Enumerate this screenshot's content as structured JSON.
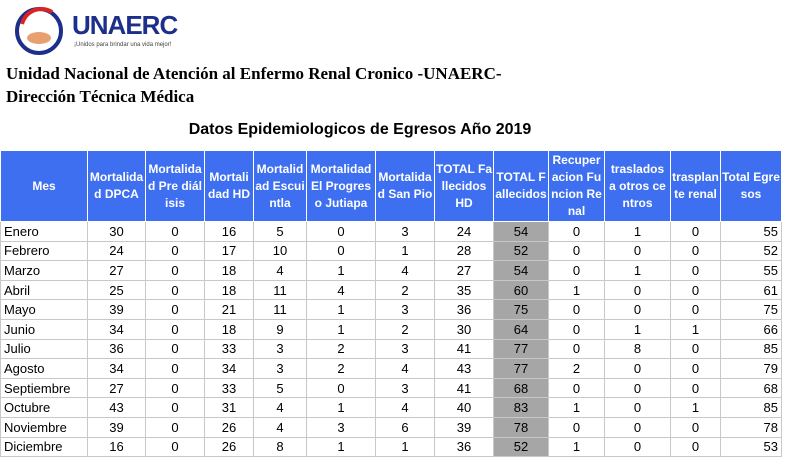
{
  "header": {
    "logo": "UNAERC",
    "tagline": "¡Unidos para brindar una vida mejor!",
    "title": "Unidad Nacional de Atención al Enfermo Renal Cronico -UNAERC-",
    "subtitle": "Dirección Técnica Médica"
  },
  "table": {
    "title": "Datos Epidemiologicos de Egresos Año 2019",
    "columns": [
      "Mes",
      "Mortalidad DPCA",
      "Mortalidad Pre diálisis",
      "Mortalidad HD",
      "Mortalidad Escuintla",
      "Mortalidad El Progreso Jutiapa",
      "Mortalidad San Pio",
      "TOTAL Fallecidos HD",
      "TOTAL Fallecidos",
      "Recuperacion Funcion Renal",
      "traslados a otros centros",
      "trasplante renal",
      "Total Egresos"
    ],
    "rows": [
      [
        "Enero",
        30,
        0,
        16,
        5,
        0,
        3,
        24,
        54,
        0,
        1,
        0,
        55
      ],
      [
        "Febrero",
        24,
        0,
        17,
        10,
        0,
        1,
        28,
        52,
        0,
        0,
        0,
        52
      ],
      [
        "Marzo",
        27,
        0,
        18,
        4,
        1,
        4,
        27,
        54,
        0,
        1,
        0,
        55
      ],
      [
        "Abril",
        25,
        0,
        18,
        11,
        4,
        2,
        35,
        60,
        1,
        0,
        0,
        61
      ],
      [
        "Mayo",
        39,
        0,
        21,
        11,
        1,
        3,
        36,
        75,
        0,
        0,
        0,
        75
      ],
      [
        "Junio",
        34,
        0,
        18,
        9,
        1,
        2,
        30,
        64,
        0,
        1,
        1,
        66
      ],
      [
        "Julio",
        36,
        0,
        33,
        3,
        2,
        3,
        41,
        77,
        0,
        8,
        0,
        85
      ],
      [
        "Agosto",
        34,
        0,
        34,
        3,
        2,
        4,
        43,
        77,
        2,
        0,
        0,
        79
      ],
      [
        "Septiembre",
        27,
        0,
        33,
        5,
        0,
        3,
        41,
        68,
        0,
        0,
        0,
        68
      ],
      [
        "Octubre",
        43,
        0,
        31,
        4,
        1,
        4,
        40,
        83,
        1,
        0,
        1,
        85
      ],
      [
        "Noviembre",
        39,
        0,
        26,
        4,
        3,
        6,
        39,
        78,
        0,
        0,
        0,
        78
      ],
      [
        "Diciembre",
        16,
        0,
        26,
        8,
        1,
        1,
        36,
        52,
        1,
        0,
        0,
        53
      ]
    ]
  }
}
